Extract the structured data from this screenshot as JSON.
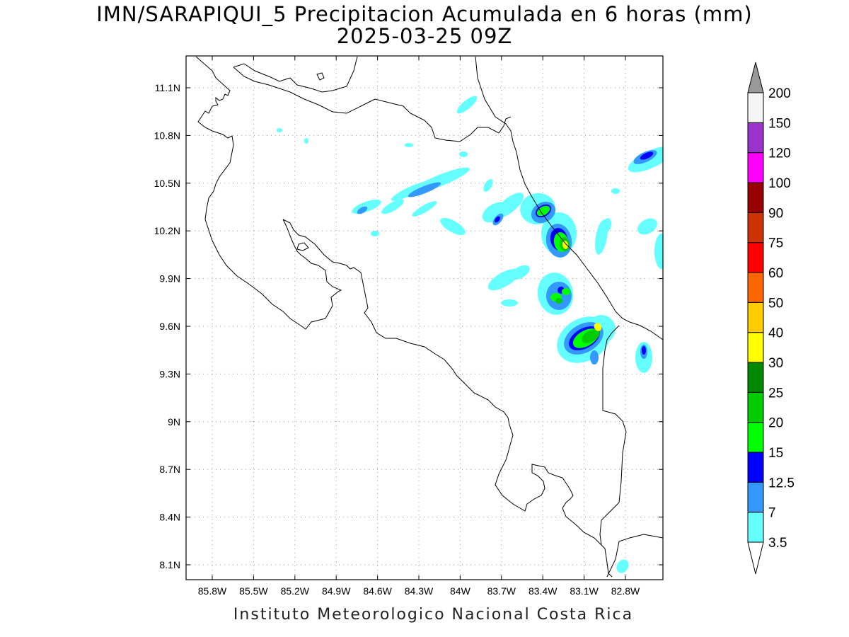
{
  "title": {
    "line1": "IMN/SARAPIQUI_5 Precipitacion Acumulada en 6 horas (mm)",
    "line2": "2025-03-25 09Z"
  },
  "footer": "Instituto Meteorologico Nacional Costa Rica",
  "axes": {
    "lon_ticks": [
      "85.8W",
      "85.5W",
      "85.2W",
      "84.9W",
      "84.6W",
      "84.3W",
      "84W",
      "83.7W",
      "83.4W",
      "83.1W",
      "82.8W"
    ],
    "lat_ticks": [
      "11.1N",
      "10.8N",
      "10.5N",
      "10.2N",
      "9.9N",
      "9.6N",
      "9.3N",
      "9N",
      "8.7N",
      "8.4N",
      "8.1N"
    ],
    "grid": true
  },
  "colorbar": {
    "labels": [
      "3.5",
      "7",
      "12.5",
      "15",
      "20",
      "25",
      "30",
      "40",
      "50",
      "60",
      "75",
      "90",
      "100",
      "120",
      "150",
      "200"
    ],
    "colors": [
      "#66ffff",
      "#3399ff",
      "#0000ff",
      "#00ff00",
      "#00cc00",
      "#008800",
      "#ffff00",
      "#ffcc00",
      "#ff6600",
      "#ff0000",
      "#cc3300",
      "#990000",
      "#ff00ff",
      "#9933cc",
      "#f5f5f5"
    ],
    "under_color": "#ffffff",
    "over_color": "#999999"
  },
  "colors": {
    "coast": "#000000",
    "grid": "#999999",
    "frame": "#000000"
  }
}
